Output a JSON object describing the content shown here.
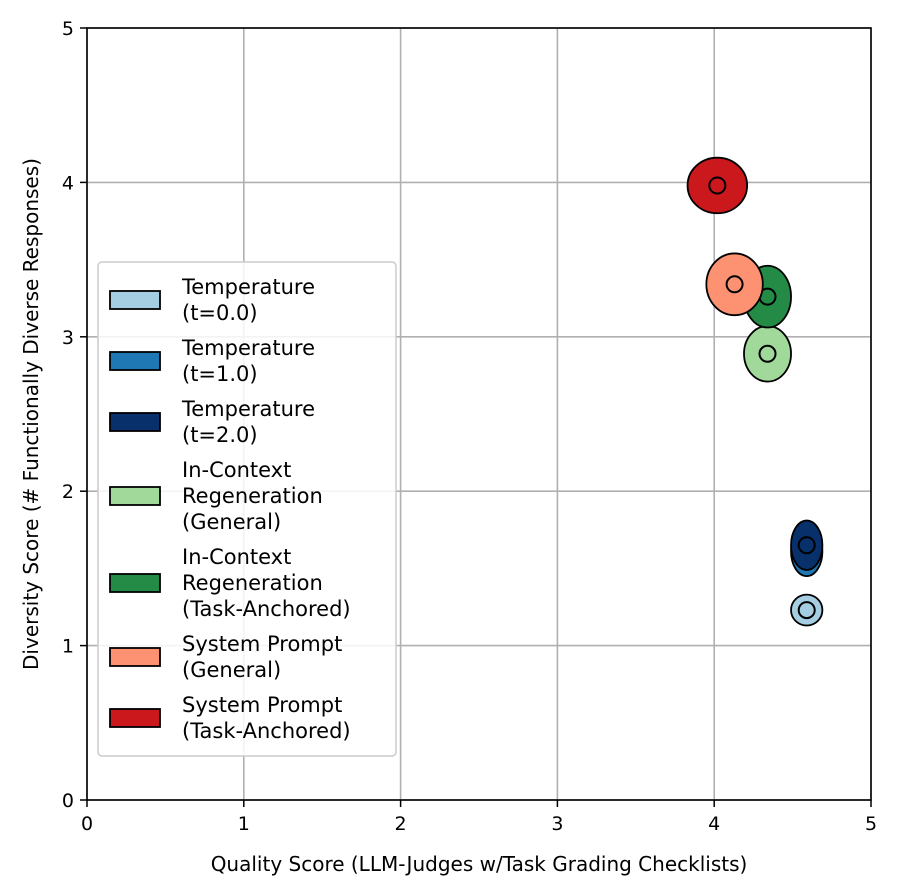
{
  "chart_data": {
    "type": "scatter",
    "title": "",
    "xlabel": "Quality Score (LLM-Judges w/Task Grading Checklists)",
    "ylabel": "Diversity Score (# Functionally Diverse Responses)",
    "xlim": [
      0,
      5
    ],
    "ylim": [
      0,
      5
    ],
    "xticks": [
      0,
      1,
      2,
      3,
      4,
      5
    ],
    "yticks": [
      0,
      1,
      2,
      3,
      4,
      5
    ],
    "grid": true,
    "legend_position": "center-left",
    "series": [
      {
        "name_lines": [
          "Temperature",
          "(t=0.0)"
        ],
        "color": "#a6cee3",
        "x": 4.59,
        "y": 1.23,
        "x_err": 0.1,
        "y_err": 0.1
      },
      {
        "name_lines": [
          "Temperature",
          "(t=1.0)"
        ],
        "color": "#1f78b4",
        "x": 4.59,
        "y": 1.61,
        "x_err": 0.1,
        "y_err": 0.16
      },
      {
        "name_lines": [
          "Temperature",
          "(t=2.0)"
        ],
        "color": "#08306b",
        "x": 4.59,
        "y": 1.65,
        "x_err": 0.1,
        "y_err": 0.16
      },
      {
        "name_lines": [
          "In-Context",
          "Regeneration",
          "(General)"
        ],
        "color": "#a1d99b",
        "x": 4.34,
        "y": 2.89,
        "x_err": 0.15,
        "y_err": 0.18
      },
      {
        "name_lines": [
          "In-Context",
          "Regeneration",
          "(Task-Anchored)"
        ],
        "color": "#238b45",
        "x": 4.34,
        "y": 3.26,
        "x_err": 0.15,
        "y_err": 0.2
      },
      {
        "name_lines": [
          "System Prompt",
          "(General)"
        ],
        "color": "#fc9272",
        "x": 4.13,
        "y": 3.34,
        "x_err": 0.18,
        "y_err": 0.2
      },
      {
        "name_lines": [
          "System Prompt",
          "(Task-Anchored)"
        ],
        "color": "#cb181d",
        "x": 4.02,
        "y": 3.98,
        "x_err": 0.19,
        "y_err": 0.18
      }
    ]
  }
}
